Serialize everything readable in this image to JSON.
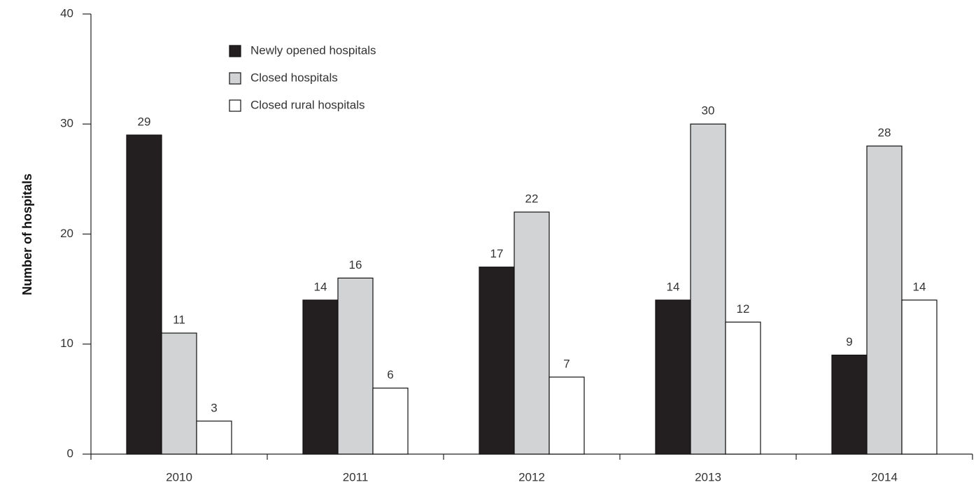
{
  "chart_data": {
    "type": "bar",
    "y_label": "Number of hospitals",
    "categories": [
      "2010",
      "2011",
      "2012",
      "2013",
      "2014"
    ],
    "series": [
      {
        "name": "Newly opened hospitals",
        "color": "#231f20",
        "values": [
          29,
          14,
          17,
          14,
          9
        ]
      },
      {
        "name": "Closed hospitals",
        "color": "#d1d3d4",
        "values": [
          11,
          16,
          22,
          30,
          28
        ]
      },
      {
        "name": "Closed rural hospitals",
        "color": "#ffffff",
        "values": [
          3,
          6,
          7,
          12,
          14
        ]
      }
    ],
    "ylim": [
      0,
      40
    ],
    "yticks": [
      0,
      10,
      20,
      30,
      40
    ]
  }
}
